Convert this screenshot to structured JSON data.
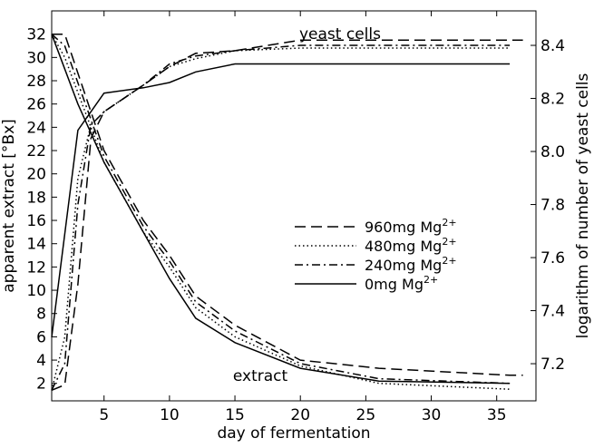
{
  "chart_data": {
    "type": "line",
    "xlabel": "day of fermentation",
    "ylabel_left": "apparent extract [°Bx]",
    "ylabel_right": "logarithm of number of yeast cells",
    "xlim": [
      1,
      38
    ],
    "ylim_left": [
      0.5,
      34
    ],
    "ylim_right": [
      7.06,
      8.53
    ],
    "x_ticks": [
      5,
      10,
      15,
      20,
      25,
      30,
      35
    ],
    "y_ticks_left": [
      2,
      4,
      6,
      8,
      10,
      12,
      14,
      16,
      18,
      20,
      22,
      24,
      26,
      28,
      30,
      32
    ],
    "y_ticks_right": [
      7.2,
      7.4,
      7.6,
      7.8,
      8.0,
      8.2,
      8.4
    ],
    "grid": false,
    "legend_position": "center-right",
    "annotations": [
      {
        "text": "yeast cells",
        "x": 25,
        "y_left": 32.2
      },
      {
        "text": "extract",
        "x": 14.5,
        "y_left": 2.5
      }
    ],
    "series": [
      {
        "name": "960mg Mg²⁺",
        "legend_main": "960mg Mg",
        "legend_sup": "2+",
        "style": "dashed",
        "extract": {
          "x": [
            1,
            2,
            5,
            8,
            10,
            12,
            15,
            20,
            26,
            36,
            37
          ],
          "y": [
            32,
            32,
            22,
            16,
            13,
            9.5,
            7,
            4,
            3.3,
            2.7,
            2.7
          ]
        },
        "yeast": {
          "x": [
            1,
            2,
            3,
            4,
            5,
            8,
            10,
            12,
            15,
            20,
            26,
            36,
            37
          ],
          "y": [
            7.1,
            7.12,
            7.5,
            8.05,
            8.15,
            8.25,
            8.32,
            8.37,
            8.38,
            8.42,
            8.42,
            8.42,
            8.42
          ]
        }
      },
      {
        "name": "480mg Mg²⁺",
        "legend_main": "480mg Mg",
        "legend_sup": "2+",
        "style": "dotted",
        "extract": {
          "x": [
            1,
            2,
            5,
            8,
            10,
            12,
            15,
            20,
            26,
            36
          ],
          "y": [
            32,
            30,
            21,
            15,
            12,
            8.5,
            6,
            3.5,
            2,
            1.5
          ]
        },
        "yeast": {
          "x": [
            1,
            2,
            3,
            4,
            5,
            8,
            10,
            12,
            15,
            20,
            26,
            36
          ],
          "y": [
            7.1,
            7.3,
            7.9,
            8.1,
            8.15,
            8.25,
            8.32,
            8.35,
            8.38,
            8.39,
            8.39,
            8.39
          ]
        }
      },
      {
        "name": "240mg Mg²⁺",
        "legend_main": "240mg Mg",
        "legend_sup": "2+",
        "style": "dashdot",
        "extract": {
          "x": [
            1,
            2,
            5,
            8,
            10,
            12,
            15,
            20,
            26,
            36
          ],
          "y": [
            32,
            31,
            21.5,
            15.5,
            12.5,
            9,
            6.5,
            3.7,
            2.4,
            2
          ]
        },
        "yeast": {
          "x": [
            1,
            2,
            3,
            4,
            5,
            8,
            10,
            12,
            15,
            20,
            26,
            36
          ],
          "y": [
            7.1,
            7.2,
            7.8,
            8.1,
            8.15,
            8.25,
            8.33,
            8.36,
            8.38,
            8.4,
            8.4,
            8.4
          ]
        }
      },
      {
        "name": "0mg Mg²⁺",
        "legend_main": "0mg Mg",
        "legend_sup": "2+",
        "style": "solid",
        "extract": {
          "x": [
            1,
            3,
            5,
            8,
            10,
            12,
            15,
            20,
            26,
            36
          ],
          "y": [
            32,
            26,
            21,
            15,
            11,
            7.6,
            5.5,
            3.3,
            2.2,
            2
          ]
        },
        "yeast": {
          "x": [
            1,
            3,
            5,
            8,
            10,
            12,
            15,
            20,
            26,
            36
          ],
          "y": [
            7.3,
            8.08,
            8.22,
            8.24,
            8.26,
            8.3,
            8.33,
            8.33,
            8.33,
            8.33
          ]
        }
      }
    ]
  }
}
